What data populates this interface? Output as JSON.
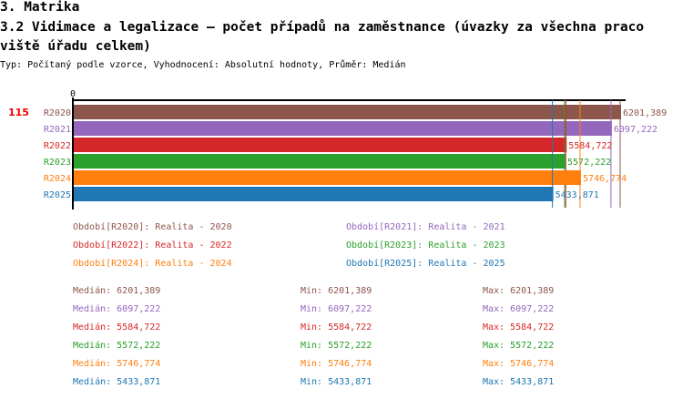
{
  "heading": "3. Matrika",
  "title_line1": "3.2 Vidimace a legalizace – počet případů na zaměstnance (úvazky za všechna praco",
  "title_line2": "viště úřadu celkem)",
  "subtitle": "Typ: Počítaný podle vzorce, Vyhodnocení: Absolutní hodnoty, Průměr: Medián",
  "row_marker": "115",
  "chart_data": {
    "type": "bar",
    "orientation": "horizontal",
    "categories": [
      "R2020",
      "R2021",
      "R2022",
      "R2023",
      "R2024",
      "R2025"
    ],
    "values": [
      6201.389,
      6097.222,
      5584.722,
      5572.222,
      5746.774,
      5433.871
    ],
    "value_labels": [
      "6201,389",
      "6097,222",
      "5584,722",
      "5572,222",
      "5746,774",
      "5433,871"
    ],
    "colors": [
      "#8c564b",
      "#9467bd",
      "#d62728",
      "#2ca02c",
      "#ff7f0e",
      "#1f77b4"
    ],
    "xlim": [
      0,
      6201.389
    ],
    "x_tick_label": "0",
    "legend": [
      "Období[R2020]: Realita - 2020",
      "Období[R2021]: Realita - 2021",
      "Období[R2022]: Realita - 2022",
      "Období[R2023]: Realita - 2023",
      "Období[R2024]: Realita - 2024",
      "Období[R2025]: Realita - 2025"
    ],
    "stats": [
      {
        "median": "Medián: 6201,389",
        "min": "Min: 6201,389",
        "max": "Max: 6201,389"
      },
      {
        "median": "Medián: 6097,222",
        "min": "Min: 6097,222",
        "max": "Max: 6097,222"
      },
      {
        "median": "Medián: 5584,722",
        "min": "Min: 5584,722",
        "max": "Max: 5584,722"
      },
      {
        "median": "Medián: 5572,222",
        "min": "Min: 5572,222",
        "max": "Max: 5572,222"
      },
      {
        "median": "Medián: 5746,774",
        "min": "Min: 5746,774",
        "max": "Max: 5746,774"
      },
      {
        "median": "Medián: 5433,871",
        "min": "Min: 5433,871",
        "max": "Max: 5433,871"
      }
    ]
  }
}
